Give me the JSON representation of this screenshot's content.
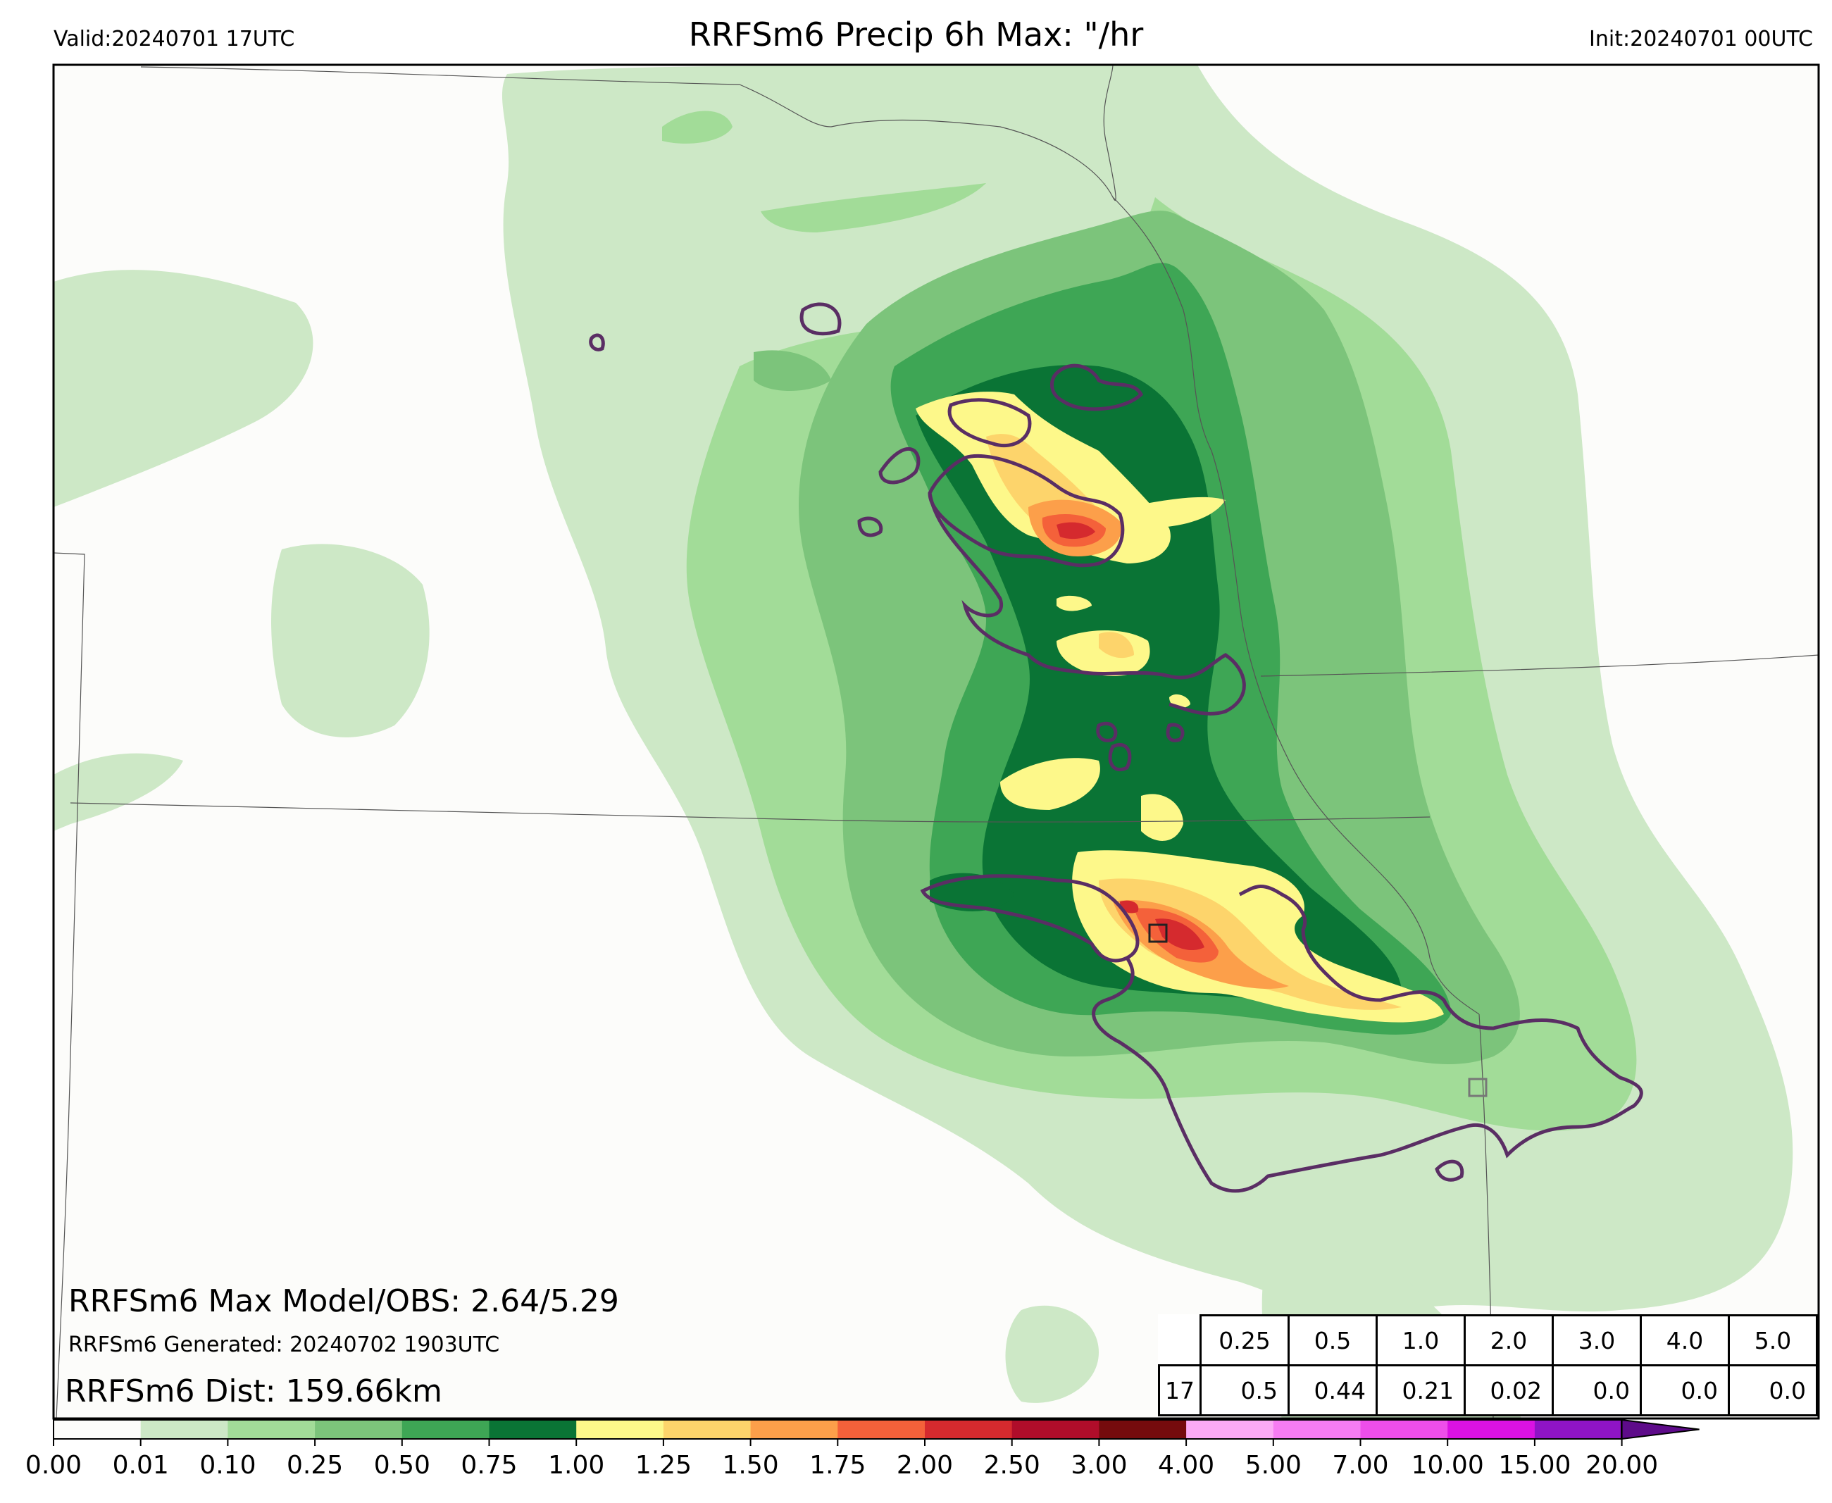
{
  "header": {
    "valid": "Valid:20240701 17UTC",
    "title": "RRFSm6 Precip 6h Max: \"/hr",
    "init": "Init:20240701 00UTC"
  },
  "overlay": {
    "max_line": "RRFSm6 Max Model/OBS: 2.64/5.29",
    "generated_line": "RRFSm6 Generated: 20240702 1903UTC",
    "dist_line": "RRFSm6 Dist: 159.66km"
  },
  "stats_table": {
    "thresholds": [
      "0.25",
      "0.5",
      "1.0",
      "2.0",
      "3.0",
      "4.0",
      "5.0"
    ],
    "row_label": "17",
    "values": [
      "0.5",
      "0.44",
      "0.21",
      "0.02",
      "0.0",
      "0.0",
      "0.0"
    ]
  },
  "colorbar": {
    "ticks": [
      "0.00",
      "0.01",
      "0.10",
      "0.25",
      "0.50",
      "0.75",
      "1.00",
      "1.25",
      "1.50",
      "1.75",
      "2.00",
      "2.50",
      "3.00",
      "4.00",
      "5.00",
      "7.00",
      "10.00",
      "15.00",
      "20.00"
    ],
    "colors": [
      "#fcfcfa",
      "#cde8c6",
      "#a2dc98",
      "#7cc47b",
      "#3ea655",
      "#0a7435",
      "#fdf88a",
      "#fdd46b",
      "#fc9f4a",
      "#f4613a",
      "#d52a2e",
      "#b00d2a",
      "#750b0d",
      "#fbaaf5",
      "#f67cf2",
      "#ee4eea",
      "#da12e3",
      "#8f14c6"
    ],
    "extend_color": "#5e0b8a"
  },
  "colors": {
    "obs_contour": "#5a2e64",
    "state_border": "#555555"
  }
}
